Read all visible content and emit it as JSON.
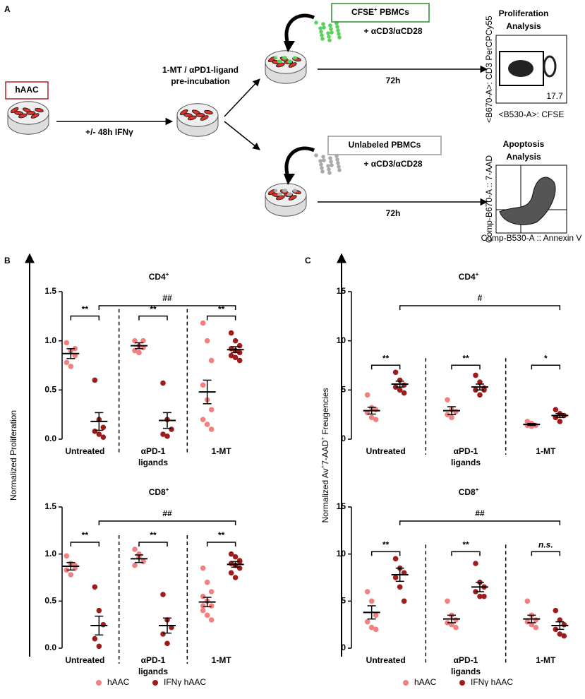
{
  "panel_a": {
    "label": "A",
    "hAAC": "hAAC",
    "ifn_step": "+/- 48h IFNγ",
    "preinc": [
      "1-MT / αPD1-ligand",
      "pre-incubation"
    ],
    "top": {
      "cells": [
        "CFSE",
        "+",
        " PBMCs"
      ],
      "stim": "+ αCD3/αCD28",
      "time": "72h",
      "analysis": [
        "Proliferation",
        "Analysis"
      ],
      "gate": "17.7",
      "ylab": "<B670-A>: CD3 PerCPCy55",
      "xlab": "<B530-A>: CFSE"
    },
    "bottom": {
      "cells": [
        "Unlabeled PBMCs"
      ],
      "stim": "+ αCD3/αCD28",
      "time": "72h",
      "analysis": [
        "Apoptosis",
        "Analysis"
      ],
      "ylab": "Comp-B670-A :: 7-AAD",
      "xlab": "Comp-B530-A :: Annexin V"
    }
  },
  "panel_b": {
    "label": "B",
    "ylabel": [
      "Normalized Proliferation"
    ]
  },
  "panel_c": {
    "label": "C",
    "ylabel": [
      "Normalized Av",
      "+",
      "7-AAD",
      "+",
      " Freugencies"
    ]
  },
  "chart_data": [
    {
      "type": "dot",
      "title": [
        "CD4",
        "+"
      ],
      "categories": [
        "Untreated",
        [
          "αPD-1",
          "ligands"
        ],
        "1-MT"
      ],
      "series": [
        {
          "name": "hAAC",
          "color": "#f28080",
          "values": [
            [
              0.98,
              0.9,
              0.85,
              0.78,
              0.74,
              0.92
            ],
            [
              1.0,
              0.95,
              0.93,
              0.9,
              0.88,
              1.0
            ],
            [
              1.18,
              1.0,
              0.8,
              0.55,
              0.4,
              0.3,
              0.2,
              0.15,
              0.1
            ]
          ],
          "mean": [
            0.87,
            0.95,
            0.48
          ],
          "sem": [
            0.05,
            0.03,
            0.12
          ]
        },
        {
          "name": "IFNγ hAAC",
          "color": "#9e1c1c",
          "values": [
            [
              0.6,
              0.2,
              0.12,
              0.08,
              0.05,
              0.02
            ],
            [
              0.57,
              0.2,
              0.1,
              0.05,
              0.03
            ],
            [
              1.08,
              1.0,
              0.95,
              0.92,
              0.9,
              0.88,
              0.85,
              0.83,
              0.8
            ]
          ],
          "mean": [
            0.18,
            0.19,
            0.91
          ],
          "sem": [
            0.09,
            0.08,
            0.03
          ]
        }
      ],
      "ylim": [
        0,
        1.5
      ],
      "yticks": [
        {
          "value": 0,
          "label": "0.0"
        },
        0.5,
        {
          "value": 1,
          "label": "1.0"
        },
        1.5
      ],
      "annotations": [
        "**",
        "**",
        "**",
        "##"
      ]
    },
    {
      "type": "dot",
      "title": [
        "CD8",
        "+"
      ],
      "categories": [
        "Untreated",
        [
          "αPD-1",
          "ligands"
        ],
        "1-MT"
      ],
      "series": [
        {
          "name": "hAAC",
          "color": "#f28080",
          "values": [
            [
              0.98,
              0.9,
              0.85,
              0.83,
              0.78,
              0.88
            ],
            [
              1.05,
              0.97,
              0.92,
              0.88,
              1.0
            ],
            [
              0.85,
              0.7,
              0.6,
              0.55,
              0.5,
              0.45,
              0.4,
              0.35,
              0.3,
              0.45
            ]
          ],
          "mean": [
            0.87,
            0.95,
            0.49
          ],
          "sem": [
            0.04,
            0.04,
            0.05
          ]
        },
        {
          "name": "IFNγ hAAC",
          "color": "#9e1c1c",
          "values": [
            [
              0.65,
              0.4,
              0.25,
              0.1,
              0.02
            ],
            [
              0.57,
              0.3,
              0.22,
              0.15,
              0.05
            ],
            [
              1.0,
              0.97,
              0.93,
              0.9,
              0.88,
              0.85,
              0.8,
              0.75,
              0.92
            ]
          ],
          "mean": [
            0.24,
            0.24,
            0.89
          ],
          "sem": [
            0.1,
            0.08,
            0.03
          ]
        }
      ],
      "ylim": [
        0,
        1.5
      ],
      "yticks": [
        {
          "value": 0,
          "label": "0.0"
        },
        0.5,
        {
          "value": 1,
          "label": "1.0"
        },
        1.5
      ],
      "annotations": [
        "**",
        "**",
        "**",
        "##"
      ]
    },
    {
      "type": "dot",
      "title": [
        "CD4",
        "+"
      ],
      "categories": [
        "Untreated",
        [
          "αPD-1",
          "ligands"
        ],
        "1-MT"
      ],
      "series": [
        {
          "name": "hAAC",
          "color": "#f28080",
          "values": [
            [
              4.5,
              3.2,
              3.0,
              2.7,
              2.2,
              2.0
            ],
            [
              4.0,
              3.0,
              2.8,
              2.5,
              2.2
            ],
            [
              1.8,
              1.6,
              1.4,
              1.4,
              1.3
            ]
          ],
          "mean": [
            2.9,
            2.9,
            1.5
          ],
          "sem": [
            0.35,
            0.4,
            0.1
          ]
        },
        {
          "name": "IFNγ hAAC",
          "color": "#9e1c1c",
          "values": [
            [
              6.8,
              6.0,
              5.5,
              5.3,
              5.0,
              4.7
            ],
            [
              6.5,
              5.8,
              5.2,
              5.0,
              4.5,
              5.0
            ],
            [
              3.0,
              2.6,
              2.4,
              2.2,
              1.8
            ]
          ],
          "mean": [
            5.6,
            5.3,
            2.4
          ],
          "sem": [
            0.3,
            0.3,
            0.2
          ]
        }
      ],
      "ylim": [
        0,
        15
      ],
      "yticks": [
        0,
        5,
        10,
        15
      ],
      "annotations": [
        "**",
        "**",
        "*",
        "#"
      ]
    },
    {
      "type": "dot",
      "title": [
        "CD8",
        "+"
      ],
      "categories": [
        "Untreated",
        [
          "αPD-1",
          "ligands"
        ],
        "1-MT"
      ],
      "series": [
        {
          "name": "hAAC",
          "color": "#f28080",
          "values": [
            [
              6.0,
              5.0,
              3.5,
              2.8,
              2.2,
              2.0
            ],
            [
              5.0,
              3.5,
              3.0,
              2.7,
              2.5,
              2.2
            ],
            [
              5.0,
              3.5,
              3.0,
              2.8,
              2.5,
              2.2
            ]
          ],
          "mean": [
            3.8,
            3.1,
            3.1
          ],
          "sem": [
            0.7,
            0.4,
            0.4
          ]
        },
        {
          "name": "IFNγ hAAC",
          "color": "#9e1c1c",
          "values": [
            [
              9.5,
              8.5,
              8.0,
              7.5,
              6.5,
              5.0
            ],
            [
              9.0,
              7.0,
              6.5,
              6.0,
              5.5,
              5.5
            ],
            [
              4.0,
              3.0,
              2.5,
              2.0,
              1.5,
              1.3
            ]
          ],
          "mean": [
            7.8,
            6.5,
            2.4
          ],
          "sem": [
            0.7,
            0.5,
            0.4
          ]
        }
      ],
      "ylim": [
        0,
        15
      ],
      "yticks": [
        0,
        5,
        10,
        15
      ],
      "annotations": [
        "**",
        "**",
        "n.s.",
        "##"
      ]
    }
  ]
}
